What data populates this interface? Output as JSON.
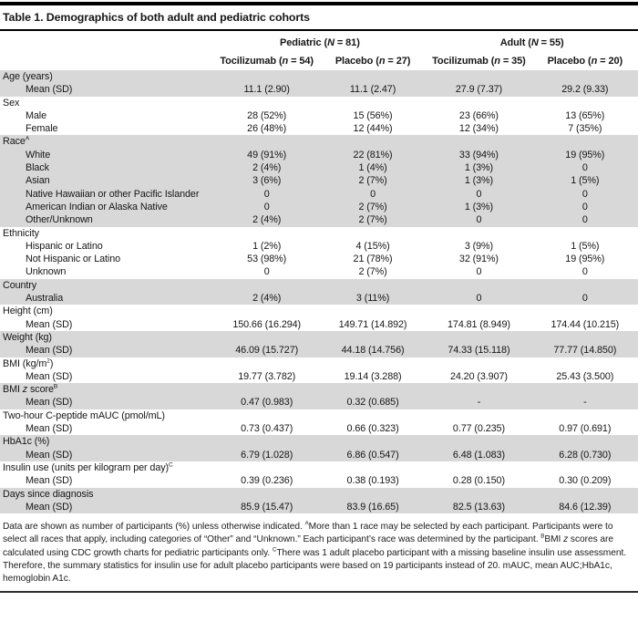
{
  "colors": {
    "row_shade": "#d8d8d8",
    "rule_color": "#000000"
  },
  "title": "Table 1. Demographics of both adult and pediatric cohorts",
  "header": {
    "groups": [
      {
        "prefix": "Pediatric (",
        "n": "N",
        "suffix": " = 81)"
      },
      {
        "prefix": "Adult (",
        "n": "N",
        "suffix": " = 55)"
      }
    ],
    "cols": [
      {
        "prefix": "Tocilizumab (",
        "n": "n",
        "suffix": " = 54)"
      },
      {
        "prefix": "Placebo (",
        "n": "n",
        "suffix": " = 27)"
      },
      {
        "prefix": "Tocilizumab (",
        "n": "n",
        "suffix": " = 35)"
      },
      {
        "prefix": "Placebo (",
        "n": "n",
        "suffix": " = 20)"
      }
    ]
  },
  "sections": [
    {
      "shaded": true,
      "label_parts": [
        {
          "t": "Age (years)"
        }
      ],
      "rows": [
        {
          "label": "Mean (SD)",
          "values": [
            "11.1 (2.90)",
            "11.1 (2.47)",
            "27.9 (7.37)",
            "29.2 (9.33)"
          ]
        }
      ]
    },
    {
      "shaded": false,
      "label_parts": [
        {
          "t": "Sex"
        }
      ],
      "rows": [
        {
          "label": "Male",
          "values": [
            "28 (52%)",
            "15 (56%)",
            "23 (66%)",
            "13 (65%)"
          ]
        },
        {
          "label": "Female",
          "values": [
            "26 (48%)",
            "12 (44%)",
            "12 (34%)",
            "7 (35%)"
          ]
        }
      ]
    },
    {
      "shaded": true,
      "label_parts": [
        {
          "t": "Race"
        },
        {
          "t": "A",
          "s": "sup"
        }
      ],
      "rows": [
        {
          "label": "White",
          "values": [
            "49 (91%)",
            "22 (81%)",
            "33 (94%)",
            "19 (95%)"
          ]
        },
        {
          "label": "Black",
          "values": [
            "2 (4%)",
            "1 (4%)",
            "1 (3%)",
            "0"
          ]
        },
        {
          "label": "Asian",
          "values": [
            "3 (6%)",
            "2 (7%)",
            "1 (3%)",
            "1 (5%)"
          ]
        },
        {
          "label": "Native Hawaiian or other Pacific Islander",
          "values": [
            "0",
            "0",
            "0",
            "0"
          ]
        },
        {
          "label": "American Indian or Alaska Native",
          "values": [
            "0",
            "2 (7%)",
            "1 (3%)",
            "0"
          ]
        },
        {
          "label": "Other/Unknown",
          "values": [
            "2 (4%)",
            "2 (7%)",
            "0",
            "0"
          ]
        }
      ]
    },
    {
      "shaded": false,
      "label_parts": [
        {
          "t": "Ethnicity"
        }
      ],
      "rows": [
        {
          "label": "Hispanic or Latino",
          "values": [
            "1 (2%)",
            "4 (15%)",
            "3 (9%)",
            "1 (5%)"
          ]
        },
        {
          "label": "Not Hispanic or Latino",
          "values": [
            "53 (98%)",
            "21 (78%)",
            "32 (91%)",
            "19 (95%)"
          ]
        },
        {
          "label": "Unknown",
          "values": [
            "0",
            "2 (7%)",
            "0",
            "0"
          ]
        }
      ]
    },
    {
      "shaded": true,
      "label_parts": [
        {
          "t": "Country"
        }
      ],
      "rows": [
        {
          "label": "Australia",
          "values": [
            "2 (4%)",
            "3 (11%)",
            "0",
            "0"
          ]
        }
      ]
    },
    {
      "shaded": false,
      "label_parts": [
        {
          "t": "Height (cm)"
        }
      ],
      "rows": [
        {
          "label": "Mean (SD)",
          "values": [
            "150.66 (16.294)",
            "149.71 (14.892)",
            "174.81 (8.949)",
            "174.44 (10.215)"
          ]
        }
      ]
    },
    {
      "shaded": true,
      "label_parts": [
        {
          "t": "Weight (kg)"
        }
      ],
      "rows": [
        {
          "label": "Mean (SD)",
          "values": [
            "46.09 (15.727)",
            "44.18 (14.756)",
            "74.33 (15.118)",
            "77.77 (14.850)"
          ]
        }
      ]
    },
    {
      "shaded": false,
      "label_parts": [
        {
          "t": "BMI (kg/m"
        },
        {
          "t": "2",
          "s": "sup"
        },
        {
          "t": ")"
        }
      ],
      "rows": [
        {
          "label": "Mean (SD)",
          "values": [
            "19.77 (3.782)",
            "19.14 (3.288)",
            "24.20 (3.907)",
            "25.43 (3.500)"
          ]
        }
      ]
    },
    {
      "shaded": true,
      "label_parts": [
        {
          "t": "BMI "
        },
        {
          "t": "z",
          "s": "i"
        },
        {
          "t": " score"
        },
        {
          "t": "B",
          "s": "sup"
        }
      ],
      "rows": [
        {
          "label": "Mean (SD)",
          "values": [
            "0.47 (0.983)",
            "0.32 (0.685)",
            "-",
            "-"
          ]
        }
      ]
    },
    {
      "shaded": false,
      "label_parts": [
        {
          "t": "Two-hour C-peptide mAUC (pmol/mL)"
        }
      ],
      "rows": [
        {
          "label": "Mean (SD)",
          "values": [
            "0.73 (0.437)",
            "0.66 (0.323)",
            "0.77 (0.235)",
            "0.97 (0.691)"
          ]
        }
      ]
    },
    {
      "shaded": true,
      "label_parts": [
        {
          "t": "HbA1c (%)"
        }
      ],
      "rows": [
        {
          "label": "Mean (SD)",
          "values": [
            "6.79 (1.028)",
            "6.86 (0.547)",
            "6.48 (1.083)",
            "6.28 (0.730)"
          ]
        }
      ]
    },
    {
      "shaded": false,
      "label_parts": [
        {
          "t": "Insulin use (units per kilogram per day)"
        },
        {
          "t": "C",
          "s": "sup"
        }
      ],
      "rows": [
        {
          "label": "Mean (SD)",
          "values": [
            "0.39 (0.236)",
            "0.38 (0.193)",
            "0.28 (0.150)",
            "0.30 (0.209)"
          ]
        }
      ]
    },
    {
      "shaded": true,
      "label_parts": [
        {
          "t": "Days since diagnosis"
        }
      ],
      "rows": [
        {
          "label": "Mean (SD)",
          "values": [
            "85.9 (15.47)",
            "83.9 (16.65)",
            "82.5 (13.63)",
            "84.6 (12.39)"
          ]
        }
      ]
    }
  ],
  "footnote_parts": [
    {
      "t": "Data are shown as number of participants (%) unless otherwise indicated. "
    },
    {
      "t": "A",
      "s": "sup"
    },
    {
      "t": "More than 1 race may be selected by each participant. Participants were to select all races that apply, including categories of “Other” and “Unknown.” Each participant’s race was determined by the participant. "
    },
    {
      "t": "B",
      "s": "sup"
    },
    {
      "t": "BMI "
    },
    {
      "t": "z",
      "s": "i"
    },
    {
      "t": " scores are calculated using CDC growth charts for pediatric participants only. "
    },
    {
      "t": "C",
      "s": "sup"
    },
    {
      "t": "There was 1 adult placebo participant with a missing baseline insulin use assessment. Therefore, the summary statistics for insulin use for adult placebo participants were based on 19 participants instead of 20. mAUC, mean AUC;HbA1c, hemoglobin A1c."
    }
  ]
}
